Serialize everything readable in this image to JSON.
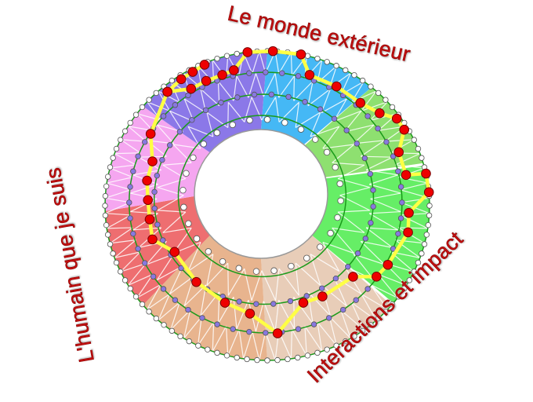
{
  "labels": {
    "outer_world": "Le monde extérieur",
    "self": "L'humain que je suis",
    "interactions": "Interactions et impact"
  },
  "colors": {
    "label_text": "#c41010",
    "path": "#ffff44",
    "path_node": "#ee0000",
    "ring": "#1a9a1a",
    "inner_node": "#8878e0",
    "sectors": [
      "#45b8f5",
      "#8ee070",
      "#66ee66",
      "#e8cdb8",
      "#e8b48e",
      "#ee6e70",
      "#f5a6f0",
      "#8b78e8"
    ]
  }
}
